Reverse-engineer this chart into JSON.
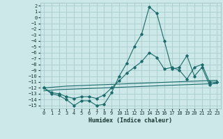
{
  "title": "",
  "xlabel": "Humidex (Indice chaleur)",
  "background_color": "#cce8e8",
  "grid_color": "#aacccc",
  "line_color": "#1a6b6b",
  "xlim": [
    -0.5,
    23.5
  ],
  "ylim": [
    -15.5,
    2.5
  ],
  "yticks": [
    -15,
    -14,
    -13,
    -12,
    -11,
    -10,
    -9,
    -8,
    -7,
    -6,
    -5,
    -4,
    -3,
    -2,
    -1,
    0,
    1,
    2
  ],
  "xticks": [
    0,
    1,
    2,
    3,
    4,
    5,
    6,
    7,
    8,
    9,
    10,
    11,
    12,
    13,
    14,
    15,
    16,
    17,
    18,
    19,
    20,
    21,
    22,
    23
  ],
  "series": [
    {
      "x": [
        0,
        1,
        2,
        3,
        4,
        5,
        6,
        7,
        8,
        9,
        10,
        11,
        12,
        13,
        14,
        15,
        16,
        17,
        18,
        19,
        20,
        21,
        22,
        23
      ],
      "y": [
        -12.0,
        -13.0,
        -13.3,
        -14.0,
        -15.0,
        -14.2,
        -14.2,
        -15.0,
        -14.8,
        -12.8,
        -10.0,
        -7.8,
        -5.0,
        -2.8,
        1.8,
        0.7,
        -4.0,
        -8.8,
        -8.5,
        -6.5,
        -10.0,
        -8.5,
        -11.5,
        -11.0
      ],
      "marker": true
    },
    {
      "x": [
        0,
        1,
        2,
        3,
        4,
        5,
        6,
        7,
        8,
        9,
        10,
        11,
        12,
        13,
        14,
        15,
        16,
        17,
        18,
        19,
        20,
        21,
        22,
        23
      ],
      "y": [
        -12.0,
        -12.8,
        -13.0,
        -13.5,
        -13.8,
        -13.5,
        -13.5,
        -13.8,
        -13.2,
        -12.0,
        -10.8,
        -9.5,
        -8.5,
        -7.5,
        -6.0,
        -6.8,
        -8.8,
        -8.5,
        -9.0,
        -10.5,
        -8.5,
        -8.0,
        -11.0,
        -11.0
      ],
      "marker": true
    },
    {
      "x": [
        0,
        1,
        2,
        3,
        4,
        5,
        6,
        7,
        8,
        9,
        10,
        11,
        12,
        13,
        14,
        15,
        16,
        17,
        18,
        19,
        20,
        21,
        22,
        23
      ],
      "y": [
        -12.0,
        -11.9,
        -11.8,
        -11.7,
        -11.65,
        -11.6,
        -11.55,
        -11.5,
        -11.45,
        -11.4,
        -11.35,
        -11.3,
        -11.25,
        -11.2,
        -11.15,
        -11.1,
        -11.05,
        -11.0,
        -10.95,
        -10.9,
        -10.85,
        -10.8,
        -10.75,
        -10.7
      ],
      "marker": false
    },
    {
      "x": [
        0,
        1,
        2,
        3,
        4,
        5,
        6,
        7,
        8,
        9,
        10,
        11,
        12,
        13,
        14,
        15,
        16,
        17,
        18,
        19,
        20,
        21,
        22,
        23
      ],
      "y": [
        -12.5,
        -12.4,
        -12.3,
        -12.25,
        -12.2,
        -12.15,
        -12.1,
        -12.05,
        -12.0,
        -11.95,
        -11.9,
        -11.85,
        -11.8,
        -11.75,
        -11.7,
        -11.65,
        -11.6,
        -11.55,
        -11.5,
        -11.45,
        -11.4,
        -11.35,
        -11.3,
        -11.25
      ],
      "marker": false
    }
  ]
}
